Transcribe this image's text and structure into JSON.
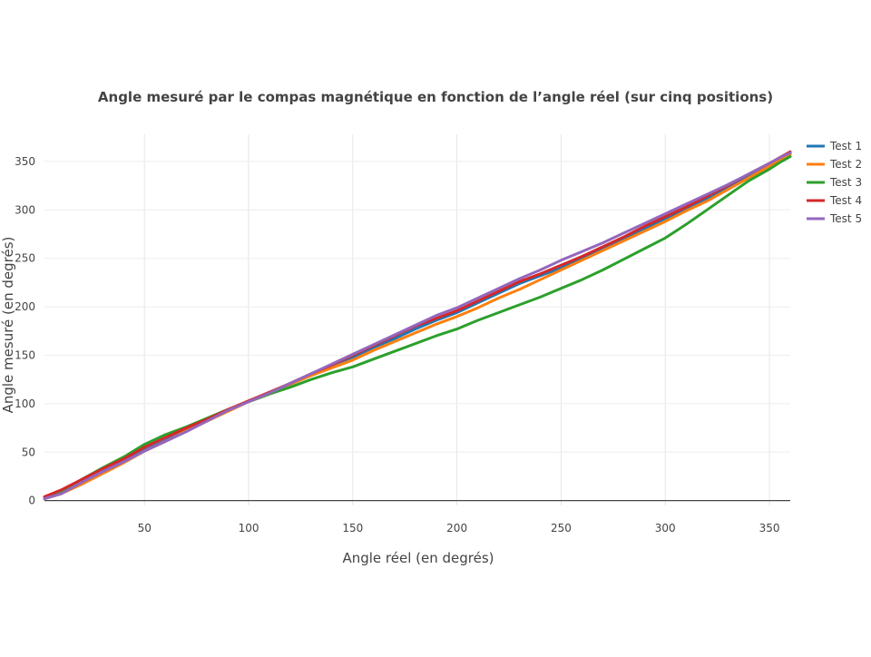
{
  "chart_data": {
    "type": "line",
    "title": "Angle mesuré par le compas magnétique en fonction de l’angle réel (sur cinq positions)",
    "xlabel": "Angle réel (en degrés)",
    "ylabel": "Angle mesuré (en degrés)",
    "xlim": [
      2,
      360
    ],
    "ylim": [
      -5,
      378
    ],
    "xticks": [
      50,
      100,
      150,
      200,
      250,
      300,
      350
    ],
    "yticks": [
      0,
      50,
      100,
      150,
      200,
      250,
      300,
      350
    ],
    "grid": true,
    "legend_position": "top-right",
    "x": [
      2,
      10,
      20,
      30,
      40,
      50,
      60,
      70,
      80,
      90,
      100,
      110,
      120,
      130,
      140,
      150,
      160,
      170,
      180,
      190,
      200,
      210,
      220,
      230,
      240,
      250,
      260,
      270,
      280,
      290,
      300,
      310,
      320,
      330,
      340,
      350,
      355,
      360
    ],
    "series": [
      {
        "name": "Test 1",
        "color": "#1f77b4",
        "values": [
          2,
          9,
          21,
          31,
          40,
          52,
          62,
          73,
          83,
          93,
          103,
          111,
          120,
          130,
          140,
          148,
          158,
          167,
          177,
          186,
          194,
          204,
          214,
          224,
          232,
          240,
          250,
          261,
          270,
          281,
          291,
          300,
          312,
          323,
          335,
          346,
          352,
          358
        ]
      },
      {
        "name": "Test 2",
        "color": "#ff7f0e",
        "values": [
          2,
          7,
          17,
          28,
          39,
          51,
          61,
          72,
          82,
          92,
          102,
          110,
          120,
          129,
          137,
          145,
          155,
          164,
          173,
          182,
          190,
          199,
          209,
          218,
          228,
          238,
          248,
          258,
          268,
          278,
          288,
          299,
          309,
          321,
          333,
          345,
          351,
          357
        ]
      },
      {
        "name": "Test 3",
        "color": "#2ca02c",
        "values": [
          2,
          9,
          22,
          34,
          45,
          58,
          68,
          76,
          85,
          94,
          102,
          110,
          117,
          125,
          132,
          138,
          146,
          154,
          162,
          170,
          177,
          186,
          194,
          202,
          210,
          219,
          228,
          238,
          249,
          260,
          271,
          285,
          300,
          315,
          330,
          342,
          349,
          355
        ]
      },
      {
        "name": "Test 4",
        "color": "#d62728",
        "values": [
          4,
          11,
          22,
          33,
          43,
          55,
          65,
          75,
          84,
          94,
          103,
          112,
          121,
          131,
          140,
          150,
          160,
          170,
          180,
          188,
          196,
          206,
          216,
          226,
          234,
          243,
          252,
          262,
          272,
          283,
          293,
          303,
          314,
          325,
          337,
          348,
          354,
          360
        ]
      },
      {
        "name": "Test 5",
        "color": "#9467bd",
        "values": [
          2,
          7,
          19,
          30,
          40,
          51,
          61,
          71,
          82,
          93,
          102,
          111,
          121,
          131,
          141,
          151,
          161,
          171,
          181,
          191,
          199,
          209,
          219,
          229,
          238,
          248,
          257,
          266,
          276,
          286,
          296,
          306,
          316,
          326,
          337,
          348,
          354,
          359
        ]
      }
    ]
  }
}
